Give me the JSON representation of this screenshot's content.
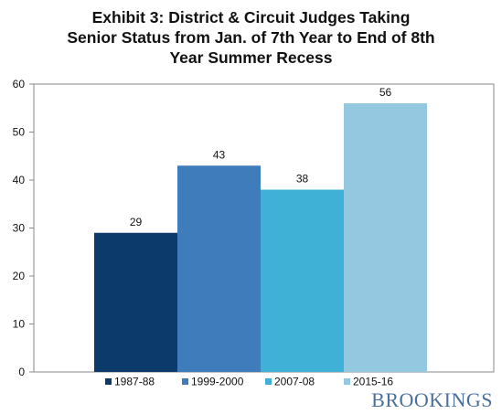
{
  "chart_data": {
    "type": "bar",
    "title_lines": [
      "Exhibit 3: District & Circuit Judges Taking",
      "Senior Status from Jan. of 7th Year to End of 8th",
      "Year Summer Recess"
    ],
    "xlabel": "",
    "ylabel": "",
    "ylim": [
      0,
      60
    ],
    "yticks": [
      "0",
      "10",
      "20",
      "30",
      "40",
      "50",
      "60"
    ],
    "grid": false,
    "legend": "bottom",
    "series": [
      {
        "name": "1987-88",
        "value": 29,
        "label": "29",
        "color": "#0b3a6b"
      },
      {
        "name": "1999-2000",
        "value": 43,
        "label": "43",
        "color": "#3f7cbc"
      },
      {
        "name": "2007-08",
        "value": 38,
        "label": "38",
        "color": "#3fb0d6"
      },
      {
        "name": "2015-16",
        "value": 56,
        "label": "56",
        "color": "#94c8e0"
      }
    ]
  },
  "brand": {
    "text": "BROOKINGS",
    "color": "#4a6f9e"
  }
}
